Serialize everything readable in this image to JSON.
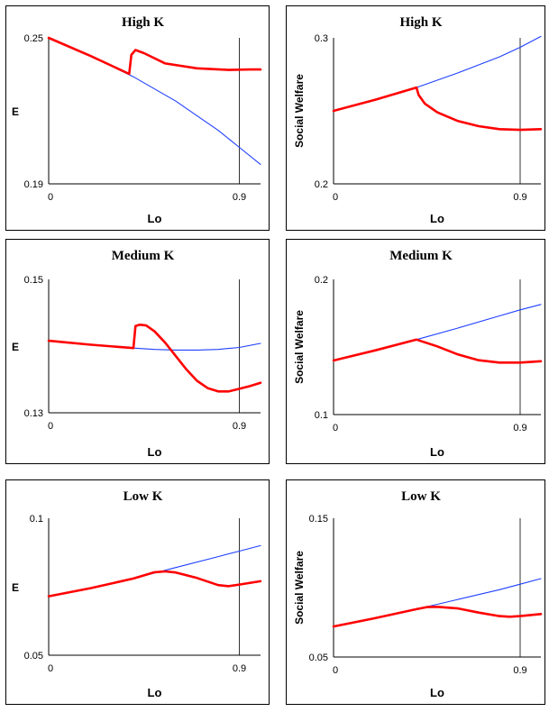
{
  "colors": {
    "blue_series": "#1f3fff",
    "red_series": "#ff0000",
    "axis": "#000000"
  },
  "chart_data": [
    {
      "type": "line",
      "title": "High K",
      "xlabel": "Lo",
      "ylabel": "E",
      "x_ticks": [
        "0",
        "0.9"
      ],
      "y_ticks": [
        "0.25",
        "0.19"
      ],
      "xlim": [
        0,
        1
      ],
      "ylim": [
        0.19,
        0.25
      ],
      "vline_x": 0.9,
      "grid": false,
      "series": [
        {
          "x": [
            0,
            0.2,
            0.4,
            0.5,
            0.6,
            0.7,
            0.8,
            0.9,
            1.0
          ],
          "values": [
            0.25,
            0.2425,
            0.234,
            0.229,
            0.224,
            0.218,
            0.212,
            0.205,
            0.198
          ]
        },
        {
          "x": [
            0,
            0.2,
            0.38,
            0.39,
            0.41,
            0.45,
            0.55,
            0.7,
            0.85,
            0.95,
            1.0
          ],
          "values": [
            0.25,
            0.2425,
            0.2352,
            0.243,
            0.245,
            0.2437,
            0.2395,
            0.2375,
            0.2368,
            0.237,
            0.237
          ]
        }
      ]
    },
    {
      "type": "line",
      "title": "High K",
      "xlabel": "Lo",
      "ylabel": "Social Welfare",
      "x_ticks": [
        "0",
        "0.9"
      ],
      "y_ticks": [
        "0.3",
        "0.2"
      ],
      "xlim": [
        0,
        1
      ],
      "ylim": [
        0.2,
        0.3
      ],
      "vline_x": 0.9,
      "grid": false,
      "series": [
        {
          "x": [
            0,
            0.2,
            0.4,
            0.6,
            0.8,
            0.9,
            1.0
          ],
          "values": [
            0.25,
            0.2575,
            0.266,
            0.276,
            0.287,
            0.2935,
            0.301
          ]
        },
        {
          "x": [
            0,
            0.2,
            0.4,
            0.41,
            0.44,
            0.5,
            0.6,
            0.7,
            0.8,
            0.9,
            1.0
          ],
          "values": [
            0.25,
            0.2575,
            0.266,
            0.261,
            0.255,
            0.249,
            0.243,
            0.2395,
            0.2375,
            0.237,
            0.2375
          ]
        }
      ]
    },
    {
      "type": "line",
      "title": "Medium K",
      "xlabel": "Lo",
      "ylabel": "E",
      "x_ticks": [
        "0",
        "0.9"
      ],
      "y_ticks": [
        "0.15",
        "0.13"
      ],
      "xlim": [
        0,
        1
      ],
      "ylim": [
        0.13,
        0.15
      ],
      "vline_x": 0.9,
      "grid": false,
      "series": [
        {
          "x": [
            0,
            0.2,
            0.4,
            0.5,
            0.6,
            0.7,
            0.8,
            0.9,
            1.0
          ],
          "values": [
            0.1408,
            0.1402,
            0.1397,
            0.1395,
            0.1394,
            0.1394,
            0.1395,
            0.1398,
            0.1404
          ]
        },
        {
          "x": [
            0,
            0.2,
            0.4,
            0.41,
            0.43,
            0.46,
            0.5,
            0.55,
            0.6,
            0.65,
            0.7,
            0.75,
            0.8,
            0.85,
            0.9,
            0.95,
            1.0
          ],
          "values": [
            0.1408,
            0.1402,
            0.1397,
            0.143,
            0.1432,
            0.1431,
            0.1422,
            0.1405,
            0.1385,
            0.1365,
            0.1348,
            0.1337,
            0.1332,
            0.1332,
            0.1336,
            0.134,
            0.1345
          ]
        }
      ]
    },
    {
      "type": "line",
      "title": "Medium K",
      "xlabel": "Lo",
      "ylabel": "Social Welfare",
      "x_ticks": [
        "0",
        "0.9"
      ],
      "y_ticks": [
        "0.2",
        "0.1"
      ],
      "xlim": [
        0,
        1
      ],
      "ylim": [
        0.1,
        0.2
      ],
      "vline_x": 0.9,
      "grid": false,
      "series": [
        {
          "x": [
            0,
            0.2,
            0.4,
            0.6,
            0.8,
            0.9,
            1.0
          ],
          "values": [
            0.14,
            0.1475,
            0.1555,
            0.164,
            0.173,
            0.1775,
            0.1815
          ]
        },
        {
          "x": [
            0,
            0.2,
            0.4,
            0.5,
            0.6,
            0.7,
            0.8,
            0.9,
            1.0
          ],
          "values": [
            0.14,
            0.1475,
            0.1555,
            0.1505,
            0.1445,
            0.1402,
            0.1385,
            0.1385,
            0.1395
          ]
        }
      ]
    },
    {
      "type": "line",
      "title": "Low K",
      "xlabel": "Lo",
      "ylabel": "E",
      "x_ticks": [
        "0",
        "0.9"
      ],
      "y_ticks": [
        "0.1",
        "0.05"
      ],
      "xlim": [
        0,
        1
      ],
      "ylim": [
        0.05,
        0.1
      ],
      "vline_x": 0.9,
      "grid": false,
      "series": [
        {
          "x": [
            0,
            0.2,
            0.4,
            0.6,
            0.8,
            0.9,
            1.0
          ],
          "values": [
            0.0715,
            0.0745,
            0.078,
            0.082,
            0.086,
            0.088,
            0.09
          ]
        },
        {
          "x": [
            0,
            0.2,
            0.4,
            0.5,
            0.55,
            0.6,
            0.7,
            0.8,
            0.85,
            0.9,
            1.0
          ],
          "values": [
            0.0715,
            0.0745,
            0.078,
            0.0803,
            0.0806,
            0.0802,
            0.0782,
            0.0756,
            0.0752,
            0.0758,
            0.077
          ]
        }
      ]
    },
    {
      "type": "line",
      "title": "Low K",
      "xlabel": "Lo",
      "ylabel": "Social Welfare",
      "x_ticks": [
        "0",
        "0.9"
      ],
      "y_ticks": [
        "0.15",
        "0.05"
      ],
      "xlim": [
        0,
        1
      ],
      "ylim": [
        0.05,
        0.15
      ],
      "vline_x": 0.9,
      "grid": false,
      "series": [
        {
          "x": [
            0,
            0.2,
            0.4,
            0.6,
            0.8,
            0.9,
            1.0
          ],
          "values": [
            0.072,
            0.078,
            0.0845,
            0.0915,
            0.0985,
            0.1025,
            0.1065
          ]
        },
        {
          "x": [
            0,
            0.2,
            0.4,
            0.45,
            0.5,
            0.6,
            0.7,
            0.8,
            0.85,
            0.9,
            1.0
          ],
          "values": [
            0.072,
            0.078,
            0.0845,
            0.086,
            0.0862,
            0.085,
            0.082,
            0.0795,
            0.079,
            0.0795,
            0.081
          ]
        }
      ]
    }
  ]
}
